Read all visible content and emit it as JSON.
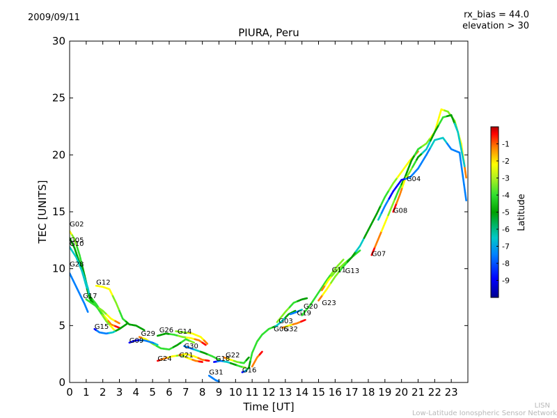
{
  "header": {
    "date": "2009/09/11",
    "rx_bias": "rx_bias = 44.0",
    "elevation": "elevation > 30"
  },
  "footer": {
    "line1": "LISN",
    "line2": "Low-Latitude Ionospheric Sensor Network"
  },
  "chart_data": {
    "type": "scatter",
    "title": "PIURA, Peru",
    "xlabel": "Time [UT]",
    "ylabel": "TEC [UNITS]",
    "xlim": [
      0,
      24
    ],
    "ylim": [
      0,
      30
    ],
    "xticks": [
      0,
      1,
      2,
      3,
      4,
      5,
      6,
      7,
      8,
      9,
      10,
      11,
      12,
      13,
      14,
      15,
      16,
      17,
      18,
      19,
      20,
      21,
      22,
      23
    ],
    "yticks": [
      0,
      5,
      10,
      15,
      20,
      25,
      30
    ],
    "colorbar": {
      "label": "Latitude",
      "range": [
        -10,
        0
      ],
      "ticks": [
        -9,
        -8,
        -7,
        -6,
        -5,
        -4,
        -3,
        -2,
        -1
      ],
      "colors": [
        "#00008f",
        "#0000ff",
        "#0080ff",
        "#00c8c8",
        "#00a000",
        "#30e030",
        "#80f020",
        "#ffff00",
        "#ff8000",
        "#ff0000",
        "#b00000"
      ]
    },
    "series": [
      {
        "name": "G02",
        "label_at": [
          0.0,
          13.7
        ],
        "points": [
          [
            0.0,
            13.3,
            -3
          ],
          [
            0.3,
            12.6,
            -4
          ],
          [
            0.6,
            11.2,
            -5
          ],
          [
            0.9,
            9.4,
            -6
          ],
          [
            1.2,
            7.6,
            -6
          ],
          [
            1.6,
            6.9,
            -5
          ],
          [
            2.0,
            6.0,
            -4
          ],
          [
            2.5,
            5.1,
            -2
          ],
          [
            3.0,
            4.8,
            -1
          ]
        ]
      },
      {
        "name": "G05",
        "label_at": [
          0.0,
          12.3
        ],
        "points": [
          [
            0.0,
            12.7,
            -6
          ],
          [
            0.3,
            11.8,
            -6
          ],
          [
            0.6,
            10.5,
            -6
          ],
          [
            0.9,
            9.0,
            -7
          ],
          [
            1.2,
            7.4,
            -6
          ],
          [
            1.7,
            6.5,
            -5
          ],
          [
            2.2,
            5.4,
            -4
          ],
          [
            2.7,
            4.6,
            -3
          ]
        ]
      },
      {
        "name": "G10",
        "label_at": [
          0.0,
          12.0
        ],
        "points": [
          [
            0.0,
            11.9,
            -7
          ],
          [
            0.4,
            11.0,
            -7
          ],
          [
            0.8,
            9.6,
            -7
          ],
          [
            1.1,
            8.3,
            -7
          ],
          [
            1.3,
            7.0,
            -6
          ]
        ]
      },
      {
        "name": "G28",
        "label_at": [
          0.0,
          10.2
        ],
        "points": [
          [
            0.0,
            9.6,
            -8
          ],
          [
            0.3,
            8.7,
            -8
          ],
          [
            0.6,
            7.8,
            -8
          ],
          [
            0.9,
            6.9,
            -8
          ],
          [
            1.1,
            6.2,
            -8
          ]
        ]
      },
      {
        "name": "G17",
        "label_at": [
          0.8,
          7.4
        ],
        "points": [
          [
            1.0,
            7.3,
            -5
          ],
          [
            1.5,
            6.8,
            -5
          ],
          [
            2.0,
            6.3,
            -4
          ],
          [
            2.5,
            5.6,
            -3
          ],
          [
            3.0,
            5.2,
            -2
          ]
        ]
      },
      {
        "name": "G12",
        "label_at": [
          1.6,
          8.6
        ],
        "points": [
          [
            1.6,
            8.5,
            -3
          ],
          [
            2.0,
            8.4,
            -3
          ],
          [
            2.4,
            8.2,
            -3
          ],
          [
            2.8,
            7.0,
            -4
          ],
          [
            3.2,
            5.6,
            -5
          ],
          [
            3.6,
            5.1,
            -6
          ],
          [
            4.0,
            5.0,
            -6
          ],
          [
            4.5,
            4.6,
            -6
          ]
        ]
      },
      {
        "name": "G15",
        "label_at": [
          1.5,
          4.7
        ],
        "points": [
          [
            1.5,
            4.7,
            -9
          ],
          [
            1.8,
            4.4,
            -8
          ],
          [
            2.2,
            4.3,
            -8
          ],
          [
            2.6,
            4.4,
            -7
          ],
          [
            3.0,
            4.7,
            -6
          ],
          [
            3.5,
            5.2,
            -6
          ]
        ]
      },
      {
        "name": "G29",
        "label_at": [
          4.3,
          4.1
        ],
        "points": [
          [
            4.2,
            4.0,
            -2
          ],
          [
            4.6,
            3.8,
            -3
          ],
          [
            5.0,
            3.4,
            -4
          ],
          [
            5.5,
            3.0,
            -5
          ],
          [
            6.0,
            2.9,
            -5
          ],
          [
            6.5,
            3.3,
            -6
          ],
          [
            7.0,
            3.8,
            -5
          ],
          [
            7.5,
            3.5,
            -4
          ]
        ]
      },
      {
        "name": "G09",
        "label_at": [
          3.6,
          3.5
        ],
        "points": [
          [
            3.6,
            3.5,
            -9
          ],
          [
            4.0,
            3.7,
            -9
          ],
          [
            4.5,
            3.7,
            -8
          ],
          [
            5.0,
            3.5,
            -8
          ],
          [
            5.3,
            3.3,
            -7
          ]
        ]
      },
      {
        "name": "G26",
        "label_at": [
          5.4,
          4.4
        ],
        "points": [
          [
            5.3,
            4.1,
            -6
          ],
          [
            5.8,
            4.3,
            -6
          ],
          [
            6.3,
            4.2,
            -5
          ],
          [
            6.8,
            4.0,
            -4
          ],
          [
            7.3,
            3.9,
            -3
          ],
          [
            7.8,
            3.7,
            -2
          ],
          [
            8.2,
            3.3,
            -1
          ]
        ]
      },
      {
        "name": "G14",
        "label_at": [
          6.5,
          4.3
        ],
        "points": [
          [
            6.4,
            4.5,
            -4
          ],
          [
            6.9,
            4.4,
            -4
          ],
          [
            7.4,
            4.3,
            -3
          ],
          [
            7.9,
            4.0,
            -3
          ],
          [
            8.3,
            3.4,
            -2
          ]
        ]
      },
      {
        "name": "G24",
        "label_at": [
          5.3,
          1.9
        ],
        "points": [
          [
            5.3,
            1.9,
            -1
          ],
          [
            5.7,
            2.1,
            -2
          ],
          [
            6.2,
            2.3,
            -3
          ],
          [
            6.7,
            2.4,
            -4
          ],
          [
            7.2,
            2.1,
            -3
          ],
          [
            7.6,
            1.9,
            -2
          ],
          [
            8.0,
            1.8,
            -1
          ]
        ]
      },
      {
        "name": "G21",
        "label_at": [
          6.6,
          2.2
        ],
        "points": [
          [
            6.6,
            2.4,
            -2
          ],
          [
            7.0,
            2.5,
            -3
          ],
          [
            7.5,
            2.3,
            -3
          ],
          [
            8.0,
            2.0,
            -2
          ],
          [
            8.4,
            1.9,
            -1
          ]
        ]
      },
      {
        "name": "G30",
        "label_at": [
          6.9,
          3.0
        ],
        "points": [
          [
            6.9,
            3.2,
            -8
          ],
          [
            7.3,
            3.0,
            -8
          ],
          [
            7.7,
            2.8,
            -7
          ],
          [
            8.1,
            2.6,
            -6
          ],
          [
            8.6,
            2.3,
            -5
          ],
          [
            9.0,
            2.0,
            -5
          ]
        ]
      },
      {
        "name": "G18",
        "label_at": [
          8.8,
          1.9
        ],
        "points": [
          [
            8.7,
            1.8,
            -9
          ],
          [
            9.1,
            1.9,
            -8
          ],
          [
            9.5,
            1.8,
            -7
          ],
          [
            9.9,
            1.6,
            -6
          ],
          [
            10.3,
            1.4,
            -5
          ],
          [
            10.6,
            1.3,
            -4
          ]
        ]
      },
      {
        "name": "G22",
        "label_at": [
          9.4,
          2.2
        ],
        "points": [
          [
            9.3,
            2.2,
            -2
          ],
          [
            9.7,
            2.0,
            -3
          ],
          [
            10.1,
            1.8,
            -4
          ],
          [
            10.5,
            1.7,
            -5
          ],
          [
            10.8,
            2.2,
            -6
          ]
        ]
      },
      {
        "name": "G31",
        "label_at": [
          8.4,
          0.7
        ],
        "points": [
          [
            8.4,
            0.6,
            -8
          ],
          [
            8.6,
            0.4,
            -8
          ],
          [
            8.8,
            0.2,
            -8
          ],
          [
            9.0,
            0.1,
            -8
          ]
        ]
      },
      {
        "name": "G16",
        "label_at": [
          10.4,
          0.9
        ],
        "points": [
          [
            10.4,
            0.9,
            -9
          ],
          [
            10.6,
            1.0,
            -8
          ],
          [
            10.8,
            1.3,
            -6
          ],
          [
            11.0,
            2.6,
            -5
          ],
          [
            11.3,
            3.6,
            -5
          ],
          [
            11.6,
            4.2,
            -5
          ],
          [
            12.0,
            4.7,
            -5
          ],
          [
            12.5,
            5.0,
            -6
          ]
        ]
      },
      {
        "name": "G06",
        "label_at": [
          12.3,
          4.5
        ],
        "points": [
          [
            11.0,
            1.4,
            -2
          ],
          [
            11.3,
            2.2,
            -2
          ],
          [
            11.6,
            2.7,
            -1
          ]
        ]
      },
      {
        "name": "G32",
        "label_at": [
          12.9,
          4.5
        ],
        "points": [
          [
            12.8,
            4.8,
            -2
          ],
          [
            13.2,
            5.0,
            -3
          ],
          [
            13.7,
            5.2,
            -2
          ],
          [
            14.2,
            5.5,
            -1
          ]
        ]
      },
      {
        "name": "G03",
        "label_at": [
          12.6,
          5.2
        ],
        "points": [
          [
            12.4,
            4.9,
            -7
          ],
          [
            12.8,
            5.4,
            -7
          ],
          [
            13.2,
            6.0,
            -6
          ],
          [
            13.6,
            6.3,
            -6
          ]
        ]
      },
      {
        "name": "G19",
        "label_at": [
          13.7,
          5.9
        ],
        "points": [
          [
            13.3,
            6.0,
            -8
          ],
          [
            13.7,
            6.2,
            -8
          ],
          [
            14.0,
            6.4,
            -7
          ]
        ]
      },
      {
        "name": "G20",
        "label_at": [
          14.1,
          6.5
        ],
        "points": [
          [
            12.5,
            5.3,
            -4
          ],
          [
            13.0,
            6.2,
            -4
          ],
          [
            13.5,
            7.0,
            -5
          ],
          [
            14.0,
            7.3,
            -6
          ],
          [
            14.3,
            7.4,
            -6
          ]
        ]
      },
      {
        "name": "G23",
        "label_at": [
          15.2,
          6.8
        ],
        "points": [
          [
            14.0,
            5.9,
            -5
          ],
          [
            14.5,
            6.8,
            -5
          ],
          [
            15.0,
            7.9,
            -5
          ],
          [
            15.5,
            9.0,
            -5
          ],
          [
            16.0,
            10.0,
            -4
          ],
          [
            16.5,
            10.8,
            -4
          ]
        ]
      },
      {
        "name": "G11",
        "label_at": [
          15.8,
          9.7
        ],
        "points": [
          [
            15.2,
            8.1,
            -2
          ],
          [
            15.6,
            9.0,
            -3
          ],
          [
            16.0,
            9.7,
            -4
          ],
          [
            16.5,
            10.4,
            -4
          ],
          [
            17.0,
            11.0,
            -5
          ],
          [
            17.5,
            11.6,
            -5
          ]
        ]
      },
      {
        "name": "G13",
        "label_at": [
          16.6,
          9.6
        ],
        "points": [
          [
            15.0,
            7.2,
            -2
          ],
          [
            15.5,
            8.2,
            -3
          ],
          [
            16.0,
            9.3,
            -4
          ],
          [
            16.5,
            10.2,
            -5
          ],
          [
            17.0,
            11.0,
            -6
          ],
          [
            17.5,
            12.0,
            -7
          ],
          [
            18.0,
            13.4,
            -6
          ],
          [
            18.5,
            14.8,
            -6
          ],
          [
            19.0,
            16.3,
            -5
          ],
          [
            19.5,
            17.5,
            -4
          ],
          [
            20.0,
            18.5,
            -3
          ],
          [
            20.5,
            19.5,
            -3
          ],
          [
            21.0,
            20.3,
            -2
          ]
        ]
      },
      {
        "name": "G07",
        "label_at": [
          18.2,
          11.1
        ],
        "points": [
          [
            18.2,
            11.2,
            -1
          ],
          [
            18.6,
            12.6,
            -2
          ],
          [
            19.0,
            14.0,
            -3
          ],
          [
            19.4,
            15.4,
            -4
          ],
          [
            19.8,
            16.8,
            -5
          ],
          [
            20.2,
            18.0,
            -6
          ],
          [
            20.6,
            19.5,
            -6
          ],
          [
            21.0,
            20.5,
            -5
          ],
          [
            21.5,
            21.0,
            -4
          ],
          [
            22.0,
            22.0,
            -3
          ],
          [
            22.4,
            24.0,
            -3
          ],
          [
            22.8,
            23.8,
            -4
          ],
          [
            23.2,
            23.0,
            -4
          ],
          [
            23.6,
            21.0,
            -3
          ],
          [
            23.9,
            18.0,
            -2
          ]
        ]
      },
      {
        "name": "G08",
        "label_at": [
          19.5,
          14.9
        ],
        "points": [
          [
            19.5,
            15.0,
            -1
          ],
          [
            19.9,
            16.5,
            -2
          ],
          [
            20.2,
            17.8,
            -3
          ],
          [
            20.5,
            18.5,
            -4
          ],
          [
            21.0,
            19.8,
            -6
          ],
          [
            21.5,
            20.5,
            -7
          ],
          [
            22.0,
            22.0,
            -6
          ],
          [
            22.5,
            23.3,
            -5
          ],
          [
            23.0,
            23.5,
            -6
          ],
          [
            23.4,
            22.0,
            -7
          ],
          [
            23.8,
            19.0,
            -7
          ]
        ]
      },
      {
        "name": "G04",
        "label_at": [
          20.3,
          17.7
        ],
        "points": [
          [
            18.6,
            14.3,
            -7
          ],
          [
            19.0,
            15.5,
            -8
          ],
          [
            19.5,
            16.8,
            -9
          ],
          [
            20.0,
            17.8,
            -9
          ],
          [
            20.5,
            18.0,
            -8
          ],
          [
            21.0,
            18.8,
            -8
          ],
          [
            21.5,
            20.0,
            -8
          ],
          [
            22.0,
            21.3,
            -7
          ],
          [
            22.5,
            21.5,
            -7
          ],
          [
            23.0,
            20.5,
            -8
          ],
          [
            23.5,
            20.2,
            -8
          ],
          [
            23.9,
            16.0,
            -8
          ]
        ]
      }
    ]
  }
}
